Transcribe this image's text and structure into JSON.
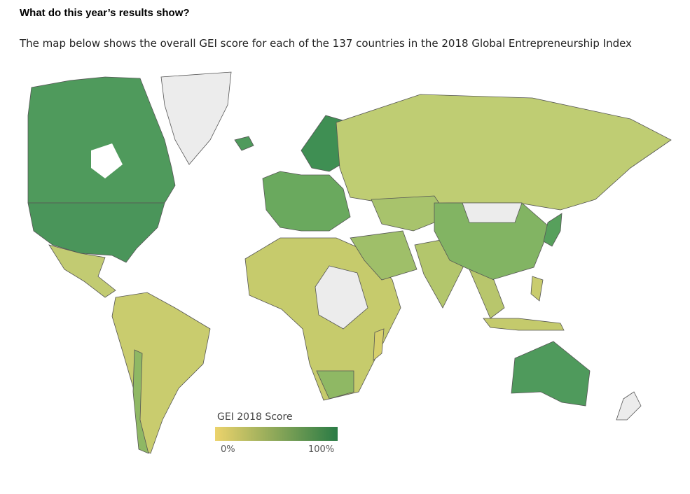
{
  "header": {
    "title": "What do this year’s results show?",
    "subtitle": "The map below shows the overall GEI score for each of the 137 countries in the 2018 Global Entrepreneurship Index"
  },
  "legend": {
    "title": "GEI 2018 Score",
    "low_label": "0%",
    "high_label": "100%",
    "low_color": "#ecd36c",
    "high_color": "#2a7b45"
  }
}
